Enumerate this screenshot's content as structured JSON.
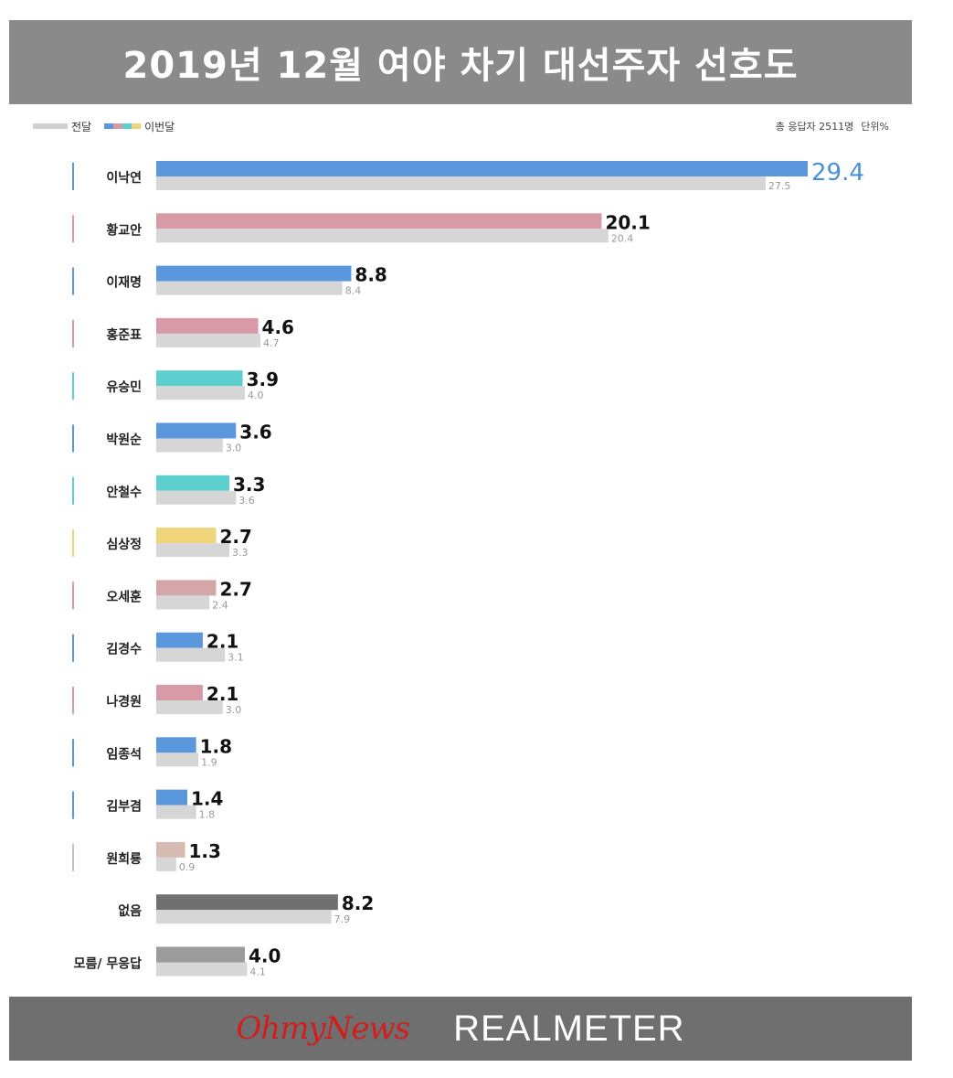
{
  "title": "2019년 12월 여야 차기 대선주자 선호도",
  "legend": {
    "previous": "전달",
    "current": "이번달"
  },
  "note": {
    "respondents": "총 응답자 2511명",
    "unit": "단위%"
  },
  "footer": {
    "brand1": "OhmyNews",
    "brand2": "REALMETER"
  },
  "colors": {
    "previous": "#d6d6d6",
    "blue": "#5a97dc",
    "pink": "#d79aa6",
    "teal": "#5ecfcf",
    "yellow": "#f0d47a",
    "rose": "#d3a6a8",
    "beige": "#d6bcb0",
    "none": "#707070",
    "unknown": "#9c9c9c",
    "highlight_text": "#4a8fd8"
  },
  "chart_data": {
    "type": "bar",
    "orientation": "horizontal",
    "title": "2019년 12월 여야 차기 대선주자 선호도",
    "categories": [
      "이낙연",
      "황교안",
      "이재명",
      "홍준표",
      "유승민",
      "박원순",
      "안철수",
      "심상정",
      "오세훈",
      "김경수",
      "나경원",
      "임종석",
      "김부겸",
      "원희룡",
      "없음",
      "모름/ 무응답"
    ],
    "series": [
      {
        "name": "이번달",
        "values": [
          29.4,
          20.1,
          8.8,
          4.6,
          3.9,
          3.6,
          3.3,
          2.7,
          2.7,
          2.1,
          2.1,
          1.8,
          1.4,
          1.3,
          8.2,
          4.0
        ]
      },
      {
        "name": "전달",
        "values": [
          27.5,
          20.4,
          8.4,
          4.7,
          4.0,
          3.0,
          3.6,
          3.3,
          2.4,
          3.1,
          3.0,
          1.9,
          1.8,
          0.9,
          7.9,
          4.1
        ]
      }
    ],
    "value_labels_current": [
      "29.4",
      "20.1",
      "8.8",
      "4.6",
      "3.9",
      "3.6",
      "3.3",
      "2.7",
      "2.7",
      "2.1",
      "2.1",
      "1.8",
      "1.4",
      "1.3",
      "8.2",
      "4.0"
    ],
    "value_labels_previous": [
      "27.5",
      "20.4",
      "8.4",
      "4.7",
      "4.0",
      "3.0",
      "3.6",
      "3.3",
      "2.4",
      "3.1",
      "3.0",
      "1.9",
      "1.8",
      "0.9",
      "7.9",
      "4.1"
    ],
    "bar_colors": [
      "blue",
      "pink",
      "blue",
      "pink",
      "teal",
      "blue",
      "teal",
      "yellow",
      "rose",
      "blue",
      "pink",
      "blue",
      "blue",
      "beige",
      "none",
      "unknown"
    ],
    "marker_colors": [
      "blue",
      "pink",
      "blue",
      "pink",
      "teal",
      "blue",
      "teal",
      "yellow",
      "pink",
      "blue",
      "pink",
      "blue",
      "blue",
      "beige",
      null,
      null
    ],
    "xlim": [
      0,
      29.4
    ],
    "grid": false,
    "legend_position": "top-left"
  }
}
